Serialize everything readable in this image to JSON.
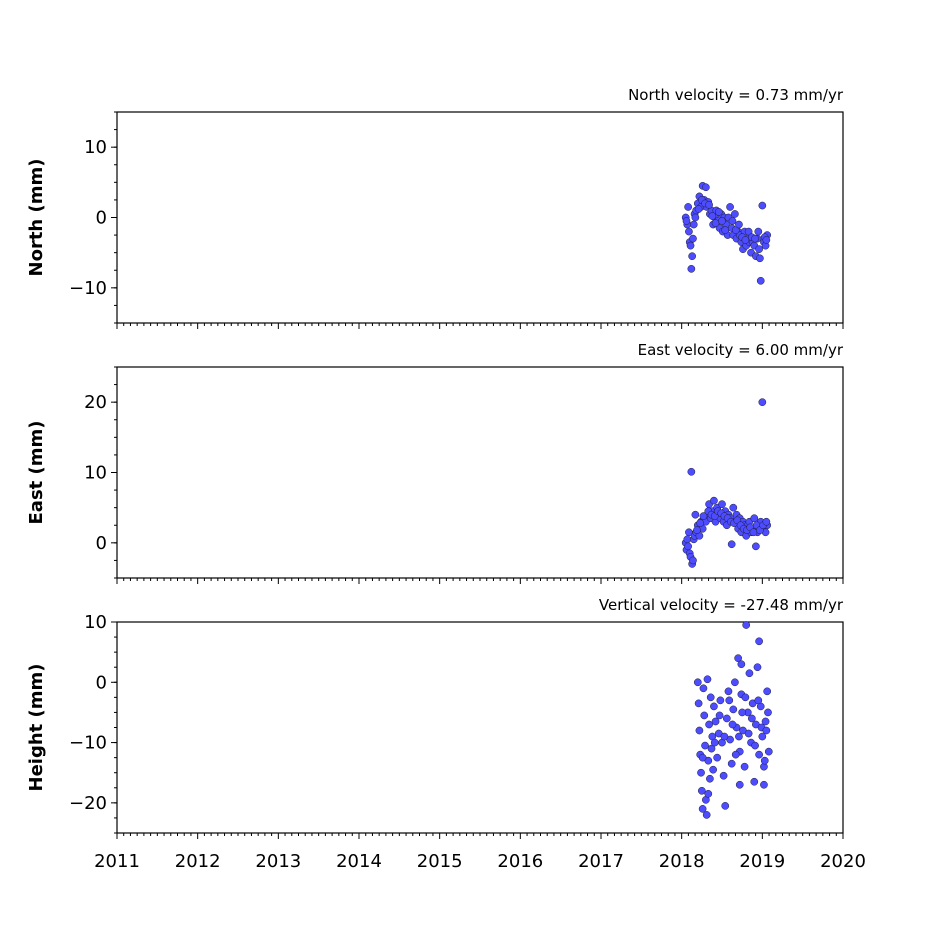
{
  "chart_data": [
    {
      "type": "scatter",
      "title": "North velocity = 0.73 mm/yr",
      "ylabel": "North (mm)",
      "xlim": [
        2011,
        2020
      ],
      "ylim": [
        -15,
        15
      ],
      "yticks": [
        10,
        0,
        -10
      ],
      "ytick_labels": [
        "10",
        "0",
        "−10"
      ],
      "series": [
        {
          "color": "#4d4dff",
          "points": [
            [
              2018.05,
              0.0
            ],
            [
              2018.07,
              -1.0
            ],
            [
              2018.08,
              1.5
            ],
            [
              2018.09,
              -2.0
            ],
            [
              2018.1,
              -3.5
            ],
            [
              2018.11,
              -4.0
            ],
            [
              2018.12,
              -7.3
            ],
            [
              2018.13,
              -5.5
            ],
            [
              2018.14,
              -3.0
            ],
            [
              2018.15,
              -1.0
            ],
            [
              2018.16,
              0.5
            ],
            [
              2018.18,
              1.0
            ],
            [
              2018.2,
              2.0
            ],
            [
              2018.22,
              3.0
            ],
            [
              2018.24,
              1.5
            ],
            [
              2018.26,
              4.5
            ],
            [
              2018.28,
              2.5
            ],
            [
              2018.3,
              4.3
            ],
            [
              2018.31,
              1.5
            ],
            [
              2018.33,
              2.2
            ],
            [
              2018.35,
              0.5
            ],
            [
              2018.37,
              1.0
            ],
            [
              2018.39,
              -1.0
            ],
            [
              2018.41,
              0.0
            ],
            [
              2018.43,
              1.0
            ],
            [
              2018.45,
              -0.5
            ],
            [
              2018.47,
              -1.5
            ],
            [
              2018.49,
              0.5
            ],
            [
              2018.51,
              -2.0
            ],
            [
              2018.53,
              0.0
            ],
            [
              2018.55,
              -1.0
            ],
            [
              2018.57,
              -2.5
            ],
            [
              2018.6,
              1.5
            ],
            [
              2018.62,
              -1.5
            ],
            [
              2018.64,
              -2.5
            ],
            [
              2018.66,
              0.5
            ],
            [
              2018.68,
              -3.0
            ],
            [
              2018.7,
              -2.0
            ],
            [
              2018.72,
              -2.5
            ],
            [
              2018.74,
              -3.5
            ],
            [
              2018.76,
              -4.5
            ],
            [
              2018.78,
              -2.0
            ],
            [
              2018.8,
              -4.0
            ],
            [
              2018.82,
              -3.0
            ],
            [
              2018.84,
              -3.5
            ],
            [
              2018.86,
              -5.0
            ],
            [
              2018.88,
              -3.5
            ],
            [
              2018.9,
              -4.0
            ],
            [
              2018.92,
              -5.5
            ],
            [
              2018.94,
              -3.0
            ],
            [
              2018.96,
              -4.5
            ],
            [
              2018.98,
              -9.0
            ],
            [
              2019.0,
              1.7
            ],
            [
              2019.02,
              -3.5
            ],
            [
              2019.04,
              -4.0
            ],
            [
              2019.06,
              -2.5
            ],
            [
              2018.06,
              -0.5
            ],
            [
              2018.17,
              0.0
            ],
            [
              2018.21,
              1.2
            ],
            [
              2018.25,
              2.5
            ],
            [
              2018.29,
              2.0
            ],
            [
              2018.34,
              1.8
            ],
            [
              2018.38,
              0.2
            ],
            [
              2018.42,
              -0.8
            ],
            [
              2018.46,
              0.8
            ],
            [
              2018.5,
              -0.5
            ],
            [
              2018.54,
              -1.8
            ],
            [
              2018.58,
              0.0
            ],
            [
              2018.63,
              -0.5
            ],
            [
              2018.67,
              -1.8
            ],
            [
              2018.71,
              -1.0
            ],
            [
              2018.75,
              -2.8
            ],
            [
              2018.79,
              -3.2
            ],
            [
              2018.83,
              -2.0
            ],
            [
              2018.87,
              -2.8
            ],
            [
              2018.91,
              -3.0
            ],
            [
              2018.95,
              -2.0
            ],
            [
              2018.97,
              -5.8
            ],
            [
              2019.03,
              -2.8
            ],
            [
              2019.05,
              -3.2
            ]
          ]
        }
      ]
    },
    {
      "type": "scatter",
      "title": "East velocity = 6.00 mm/yr",
      "ylabel": "East (mm)",
      "xlim": [
        2011,
        2020
      ],
      "ylim": [
        -5,
        25
      ],
      "yticks": [
        20,
        10,
        0
      ],
      "ytick_labels": [
        "20",
        "10",
        "0"
      ],
      "series": [
        {
          "color": "#4d4dff",
          "points": [
            [
              2018.05,
              0.0
            ],
            [
              2018.06,
              -1.0
            ],
            [
              2018.07,
              0.5
            ],
            [
              2018.08,
              -0.5
            ],
            [
              2018.09,
              1.5
            ],
            [
              2018.1,
              -1.5
            ],
            [
              2018.11,
              -2.0
            ],
            [
              2018.12,
              10.1
            ],
            [
              2018.13,
              -3.0
            ],
            [
              2018.14,
              -2.5
            ],
            [
              2018.15,
              0.5
            ],
            [
              2018.16,
              1.0
            ],
            [
              2018.17,
              4.0
            ],
            [
              2018.18,
              1.5
            ],
            [
              2018.2,
              2.5
            ],
            [
              2018.22,
              1.0
            ],
            [
              2018.24,
              3.0
            ],
            [
              2018.26,
              2.0
            ],
            [
              2018.28,
              3.5
            ],
            [
              2018.3,
              3.0
            ],
            [
              2018.32,
              4.0
            ],
            [
              2018.34,
              5.5
            ],
            [
              2018.36,
              3.5
            ],
            [
              2018.38,
              4.5
            ],
            [
              2018.4,
              6.0
            ],
            [
              2018.42,
              3.0
            ],
            [
              2018.44,
              5.0
            ],
            [
              2018.46,
              4.0
            ],
            [
              2018.48,
              3.5
            ],
            [
              2018.5,
              5.5
            ],
            [
              2018.52,
              3.0
            ],
            [
              2018.54,
              4.5
            ],
            [
              2018.56,
              2.5
            ],
            [
              2018.58,
              4.0
            ],
            [
              2018.6,
              3.5
            ],
            [
              2018.62,
              -0.2
            ],
            [
              2018.64,
              5.0
            ],
            [
              2018.66,
              3.0
            ],
            [
              2018.68,
              4.0
            ],
            [
              2018.7,
              2.0
            ],
            [
              2018.72,
              3.5
            ],
            [
              2018.74,
              1.5
            ],
            [
              2018.76,
              3.0
            ],
            [
              2018.78,
              2.5
            ],
            [
              2018.8,
              1.0
            ],
            [
              2018.82,
              2.5
            ],
            [
              2018.84,
              3.0
            ],
            [
              2018.86,
              1.5
            ],
            [
              2018.88,
              2.0
            ],
            [
              2018.9,
              3.5
            ],
            [
              2018.92,
              -0.5
            ],
            [
              2018.94,
              1.5
            ],
            [
              2018.96,
              2.0
            ],
            [
              2018.98,
              3.0
            ],
            [
              2019.0,
              20.0
            ],
            [
              2019.02,
              2.0
            ],
            [
              2019.04,
              1.5
            ],
            [
              2019.06,
              2.5
            ],
            [
              2018.19,
              1.8
            ],
            [
              2018.23,
              2.8
            ],
            [
              2018.27,
              3.8
            ],
            [
              2018.33,
              4.5
            ],
            [
              2018.37,
              4.0
            ],
            [
              2018.41,
              3.8
            ],
            [
              2018.45,
              4.5
            ],
            [
              2018.49,
              4.2
            ],
            [
              2018.53,
              3.8
            ],
            [
              2018.57,
              3.5
            ],
            [
              2018.61,
              3.0
            ],
            [
              2018.65,
              2.8
            ],
            [
              2018.69,
              3.2
            ],
            [
              2018.73,
              2.5
            ],
            [
              2018.77,
              2.0
            ],
            [
              2018.81,
              1.8
            ],
            [
              2018.85,
              2.2
            ],
            [
              2018.89,
              1.5
            ],
            [
              2018.93,
              2.5
            ],
            [
              2018.97,
              1.8
            ],
            [
              2019.01,
              2.5
            ],
            [
              2019.05,
              3.0
            ]
          ]
        }
      ]
    },
    {
      "type": "scatter",
      "title": "Vertical velocity = -27.48 mm/yr",
      "ylabel": "Height (mm)",
      "xlabel": "",
      "xlim": [
        2011,
        2020
      ],
      "ylim": [
        -25,
        10
      ],
      "yticks": [
        10,
        0,
        -10,
        -20
      ],
      "ytick_labels": [
        "10",
        "0",
        "−10",
        "−20"
      ],
      "xticks": [
        2011,
        2012,
        2013,
        2014,
        2015,
        2016,
        2017,
        2018,
        2019,
        2020
      ],
      "xtick_labels": [
        "2011",
        "2012",
        "2013",
        "2014",
        "2015",
        "2016",
        "2017",
        "2018",
        "2019",
        "2020"
      ],
      "series": [
        {
          "color": "#4d4dff",
          "points": [
            [
              2018.2,
              0.0
            ],
            [
              2018.21,
              -3.5
            ],
            [
              2018.22,
              -8.0
            ],
            [
              2018.23,
              -12.0
            ],
            [
              2018.24,
              -15.0
            ],
            [
              2018.25,
              -18.0
            ],
            [
              2018.26,
              -21.0
            ],
            [
              2018.27,
              -1.0
            ],
            [
              2018.28,
              -5.5
            ],
            [
              2018.29,
              -10.5
            ],
            [
              2018.3,
              -19.5
            ],
            [
              2018.31,
              -22.0
            ],
            [
              2018.32,
              0.5
            ],
            [
              2018.33,
              -13.0
            ],
            [
              2018.34,
              -7.0
            ],
            [
              2018.35,
              -16.0
            ],
            [
              2018.36,
              -2.5
            ],
            [
              2018.37,
              -11.0
            ],
            [
              2018.38,
              -9.0
            ],
            [
              2018.39,
              -14.5
            ],
            [
              2018.4,
              -4.0
            ],
            [
              2018.42,
              -6.5
            ],
            [
              2018.44,
              -12.5
            ],
            [
              2018.46,
              -8.5
            ],
            [
              2018.48,
              -3.0
            ],
            [
              2018.5,
              -10.0
            ],
            [
              2018.52,
              -15.5
            ],
            [
              2018.54,
              -20.5
            ],
            [
              2018.56,
              -6.0
            ],
            [
              2018.58,
              -1.5
            ],
            [
              2018.6,
              -9.5
            ],
            [
              2018.62,
              -13.5
            ],
            [
              2018.64,
              -4.5
            ],
            [
              2018.66,
              0.0
            ],
            [
              2018.68,
              -7.5
            ],
            [
              2018.7,
              4.0
            ],
            [
              2018.72,
              -11.5
            ],
            [
              2018.74,
              -2.0
            ],
            [
              2018.76,
              -8.0
            ],
            [
              2018.78,
              -14.0
            ],
            [
              2018.8,
              9.5
            ],
            [
              2018.82,
              -5.0
            ],
            [
              2018.84,
              1.5
            ],
            [
              2018.86,
              -10.0
            ],
            [
              2018.88,
              -3.5
            ],
            [
              2018.9,
              -16.5
            ],
            [
              2018.92,
              -7.0
            ],
            [
              2018.94,
              2.5
            ],
            [
              2018.96,
              -12.0
            ],
            [
              2018.98,
              -4.0
            ],
            [
              2019.0,
              -9.0
            ],
            [
              2019.02,
              -14.0
            ],
            [
              2019.04,
              -6.5
            ],
            [
              2019.06,
              -1.5
            ],
            [
              2019.08,
              -11.5
            ],
            [
              2018.72,
              -17.0
            ],
            [
              2018.74,
              3.0
            ],
            [
              2018.96,
              6.8
            ],
            [
              2019.02,
              -17.0
            ],
            [
              2018.26,
              -12.5
            ],
            [
              2018.33,
              -18.5
            ],
            [
              2018.41,
              -10.0
            ],
            [
              2018.47,
              -5.5
            ],
            [
              2018.53,
              -9.0
            ],
            [
              2018.59,
              -3.0
            ],
            [
              2018.63,
              -7.0
            ],
            [
              2018.67,
              -12.0
            ],
            [
              2018.71,
              -9.0
            ],
            [
              2018.75,
              -5.0
            ],
            [
              2018.79,
              -2.5
            ],
            [
              2018.83,
              -8.5
            ],
            [
              2018.87,
              -6.0
            ],
            [
              2018.91,
              -10.5
            ],
            [
              2018.95,
              -3.0
            ],
            [
              2018.99,
              -7.5
            ],
            [
              2019.03,
              -13.0
            ],
            [
              2019.05,
              -8.0
            ],
            [
              2019.07,
              -5.0
            ]
          ]
        }
      ]
    }
  ]
}
